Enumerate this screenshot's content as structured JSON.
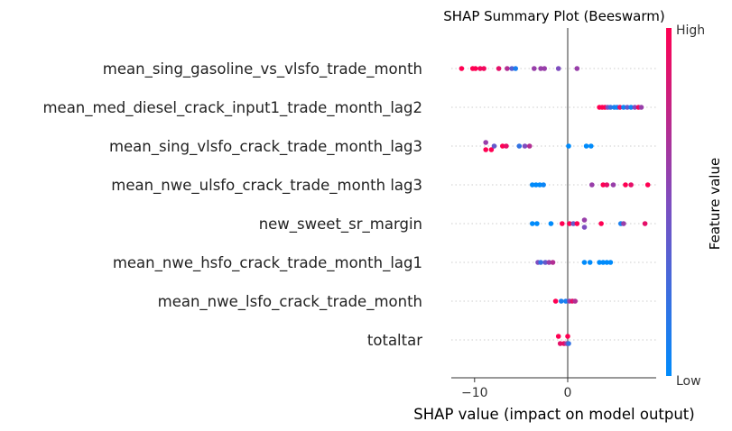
{
  "chart_data": {
    "type": "scatter",
    "title": "SHAP Summary Plot (Beeswarm)",
    "xlabel": "SHAP value (impact on model output)",
    "xlim": [
      -12.5,
      9.5
    ],
    "x_ticks": [
      -10,
      0
    ],
    "x_tick_labels": [
      "−10",
      "0"
    ],
    "zero_line": 0,
    "colorbar": {
      "label": "Feature value",
      "high_label": "High",
      "low_label": "Low",
      "low_color": "#008bfb",
      "high_color": "#ff0052",
      "mid_color": "#7e4dbf"
    },
    "grid": "dotted horizontal per feature",
    "features": [
      {
        "name": "mean_sing_gasoline_vs_vlsfo_trade_month",
        "points": [
          {
            "x": -11.4,
            "v": 1.0
          },
          {
            "x": -10.2,
            "v": 1.0
          },
          {
            "x": -9.9,
            "v": 1.0
          },
          {
            "x": -9.4,
            "v": 0.95
          },
          {
            "x": -9.0,
            "v": 0.95
          },
          {
            "x": -7.4,
            "v": 0.9
          },
          {
            "x": -6.5,
            "v": 0.7
          },
          {
            "x": -6.0,
            "v": 0.35
          },
          {
            "x": -5.6,
            "v": 0.1
          },
          {
            "x": -3.6,
            "v": 0.6
          },
          {
            "x": -2.9,
            "v": 0.6
          },
          {
            "x": -2.5,
            "v": 0.6
          },
          {
            "x": -1.0,
            "v": 0.5
          },
          {
            "x": 1.0,
            "v": 0.6
          }
        ]
      },
      {
        "name": "mean_med_diesel_crack_input1_trade_month_lag2",
        "points": [
          {
            "x": 3.4,
            "v": 1.0
          },
          {
            "x": 3.7,
            "v": 1.0
          },
          {
            "x": 4.0,
            "v": 1.0
          },
          {
            "x": 4.3,
            "v": 0.5
          },
          {
            "x": 4.6,
            "v": 0.2
          },
          {
            "x": 5.0,
            "v": 0.1
          },
          {
            "x": 5.3,
            "v": 0.05
          },
          {
            "x": 5.6,
            "v": 0.9
          },
          {
            "x": 6.0,
            "v": 0.05
          },
          {
            "x": 6.4,
            "v": 0.4
          },
          {
            "x": 6.8,
            "v": 0.05
          },
          {
            "x": 7.2,
            "v": 0.5
          },
          {
            "x": 7.6,
            "v": 0.95
          },
          {
            "x": 7.9,
            "v": 0.6
          }
        ]
      },
      {
        "name": "mean_sing_vlsfo_crack_trade_month_lag3",
        "points": [
          {
            "x": -8.8,
            "v": 0.6,
            "dy": -1
          },
          {
            "x": -8.8,
            "v": 1.0,
            "dy": 1
          },
          {
            "x": -8.2,
            "v": 1.0,
            "dy": 1
          },
          {
            "x": -7.9,
            "v": 0.4,
            "dy": 0
          },
          {
            "x": -7.0,
            "v": 1.0,
            "dy": 0
          },
          {
            "x": -6.6,
            "v": 0.9,
            "dy": 0
          },
          {
            "x": -5.2,
            "v": 0.2,
            "dy": 0
          },
          {
            "x": -4.6,
            "v": 0.5,
            "dy": 0
          },
          {
            "x": -4.1,
            "v": 0.7,
            "dy": 0
          },
          {
            "x": 0.1,
            "v": 0.0,
            "dy": 0
          },
          {
            "x": 2.0,
            "v": 0.0,
            "dy": 0
          },
          {
            "x": 2.5,
            "v": 0.0,
            "dy": 0
          }
        ]
      },
      {
        "name": "mean_nwe_ulsfo_crack_trade_month lag3",
        "points": [
          {
            "x": -3.8,
            "v": 0.0
          },
          {
            "x": -3.4,
            "v": 0.0
          },
          {
            "x": -3.0,
            "v": 0.0
          },
          {
            "x": -2.6,
            "v": 0.05
          },
          {
            "x": 2.6,
            "v": 0.6
          },
          {
            "x": 3.8,
            "v": 1.0
          },
          {
            "x": 4.2,
            "v": 0.9
          },
          {
            "x": 4.9,
            "v": 0.6
          },
          {
            "x": 6.2,
            "v": 1.0
          },
          {
            "x": 6.8,
            "v": 0.9
          },
          {
            "x": 8.6,
            "v": 1.0
          }
        ]
      },
      {
        "name": "new_sweet_sr_margin",
        "points": [
          {
            "x": -3.8,
            "v": 0.0
          },
          {
            "x": -3.3,
            "v": 0.0
          },
          {
            "x": -1.8,
            "v": 0.0
          },
          {
            "x": -0.6,
            "v": 1.0
          },
          {
            "x": 0.2,
            "v": 1.0
          },
          {
            "x": 0.6,
            "v": 0.4
          },
          {
            "x": 1.0,
            "v": 1.0
          },
          {
            "x": 1.8,
            "v": 0.6,
            "dy": -1
          },
          {
            "x": 1.8,
            "v": 0.5,
            "dy": 1
          },
          {
            "x": 3.6,
            "v": 1.0
          },
          {
            "x": 5.7,
            "v": 0.1
          },
          {
            "x": 6.0,
            "v": 0.6
          },
          {
            "x": 8.3,
            "v": 0.9
          }
        ]
      },
      {
        "name": "mean_nwe_hsfo_crack_trade_month_lag1",
        "points": [
          {
            "x": -3.2,
            "v": 0.5
          },
          {
            "x": -2.9,
            "v": 0.2
          },
          {
            "x": -2.4,
            "v": 0.4
          },
          {
            "x": -2.0,
            "v": 0.6
          },
          {
            "x": -1.6,
            "v": 0.7
          },
          {
            "x": 1.8,
            "v": 0.0
          },
          {
            "x": 2.4,
            "v": 0.0
          },
          {
            "x": 3.4,
            "v": 0.0
          },
          {
            "x": 3.8,
            "v": 0.0
          },
          {
            "x": 4.2,
            "v": 0.0
          },
          {
            "x": 4.6,
            "v": 0.0
          }
        ]
      },
      {
        "name": "mean_nwe_lsfo_crack_trade_month",
        "points": [
          {
            "x": -1.3,
            "v": 1.0
          },
          {
            "x": -0.7,
            "v": 0.1
          },
          {
            "x": -0.2,
            "v": 0.1
          },
          {
            "x": 0.2,
            "v": 0.6
          },
          {
            "x": 0.5,
            "v": 0.9
          },
          {
            "x": 0.8,
            "v": 0.7
          }
        ]
      },
      {
        "name": "totaltar",
        "points": [
          {
            "x": -1.0,
            "v": 1.0,
            "dy": -1
          },
          {
            "x": 0.0,
            "v": 1.0,
            "dy": -1
          },
          {
            "x": -0.8,
            "v": 0.9,
            "dy": 1
          },
          {
            "x": -0.4,
            "v": 0.9,
            "dy": 1
          },
          {
            "x": -0.1,
            "v": 0.6,
            "dy": 1
          },
          {
            "x": 0.1,
            "v": 0.2,
            "dy": 1
          }
        ]
      }
    ]
  }
}
